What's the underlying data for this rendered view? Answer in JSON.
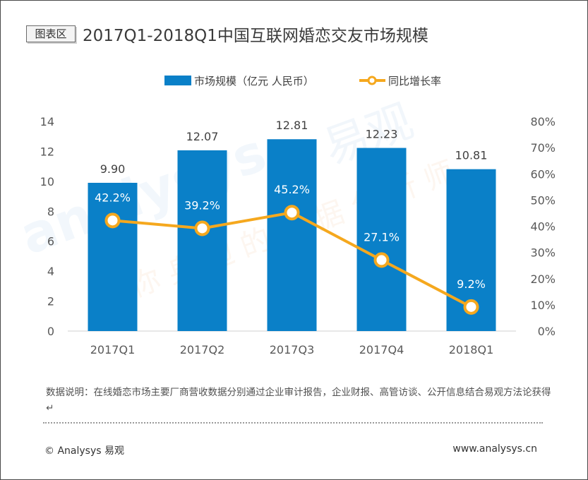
{
  "header": {
    "tag": "图表区",
    "title": "2017Q1-2018Q1中国互联网婚恋交友市场规模"
  },
  "chart_data": {
    "type": "bar",
    "title": "2017Q1-2018Q1中国互联网婚恋交友市场规模",
    "categories": [
      "2017Q1",
      "2017Q2",
      "2017Q3",
      "2017Q4",
      "2018Q1"
    ],
    "series": [
      {
        "name": "市场规模（亿元 人民币）",
        "type": "bar",
        "axis": "left",
        "values": [
          9.9,
          12.07,
          12.81,
          12.23,
          10.81
        ],
        "labels": [
          "9.90",
          "12.07",
          "12.81",
          "12.23",
          "10.81"
        ],
        "color": "#0a80c8"
      },
      {
        "name": "同比增长率",
        "type": "line",
        "axis": "right",
        "values": [
          42.2,
          39.2,
          45.2,
          27.1,
          9.2
        ],
        "labels": [
          "42.2%",
          "39.2%",
          "45.2%",
          "27.1%",
          "9.2%"
        ],
        "color": "#f5a81e"
      }
    ],
    "y_left": {
      "min": 0,
      "max": 14,
      "ticks": [
        "0",
        "2",
        "4",
        "6",
        "8",
        "10",
        "12",
        "14"
      ]
    },
    "y_right": {
      "min": 0,
      "max": 80,
      "ticks": [
        "0%",
        "10%",
        "20%",
        "30%",
        "40%",
        "50%",
        "60%",
        "70%",
        "80%"
      ]
    },
    "legend_position": "top",
    "grid": false
  },
  "footer": {
    "note": "数据说明：在线婚恋市场主要厂商营收数据分别通过企业审计报告，企业财报、高管访谈、公开信息结合易观方法论获得↵",
    "copyright": "© Analysys 易观",
    "website": "www.analysys.cn"
  },
  "colors": {
    "bar": "#0a80c8",
    "line": "#f5a81e",
    "watermark": "#e3eef7"
  }
}
